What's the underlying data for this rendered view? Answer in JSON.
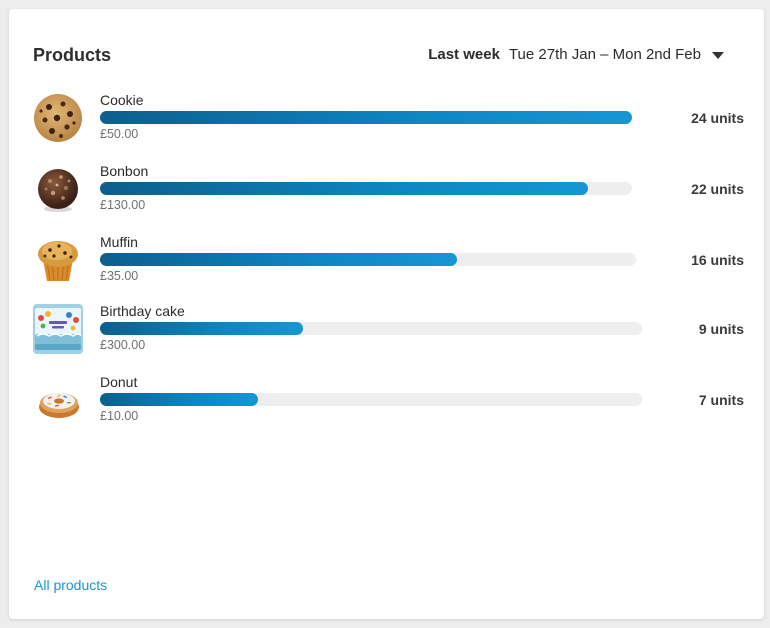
{
  "widget": {
    "title": "Products",
    "period_label": "Last week",
    "period_range": "Tue 27th Jan – Mon 2nd Feb",
    "footer_link": "All products"
  },
  "products": [
    {
      "name": "Cookie",
      "price": "£50.00",
      "units_label": "24 units",
      "units": 24,
      "image": "cookie"
    },
    {
      "name": "Bonbon",
      "price": "£130.00",
      "units_label": "22 units",
      "units": 22,
      "image": "bonbon"
    },
    {
      "name": "Muffin",
      "price": "£35.00",
      "units_label": "16 units",
      "units": 16,
      "image": "muffin"
    },
    {
      "name": "Birthday cake",
      "price": "£300.00",
      "units_label": "9 units",
      "units": 9,
      "image": "birthday-cake"
    },
    {
      "name": "Donut",
      "price": "£10.00",
      "units_label": "7 units",
      "units": 7,
      "image": "donut"
    }
  ],
  "colors": {
    "bar_start": "#0b5f8c",
    "bar_end": "#1596d3",
    "track": "#eeeeee",
    "link": "#1a93d0"
  }
}
